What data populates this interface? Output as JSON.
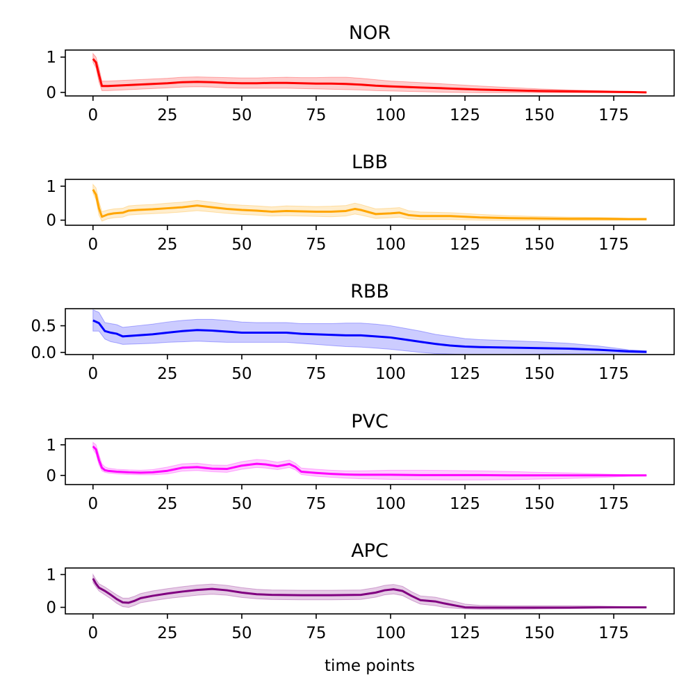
{
  "chart_data": [
    {
      "type": "line",
      "title": "NOR",
      "color": "#ff0000",
      "xlim": [
        -9.3,
        195.3
      ],
      "ylim": [
        -0.1,
        1.2
      ],
      "yticks": [
        0,
        1
      ],
      "ytick_labels": [
        "0",
        "1"
      ],
      "xticks": [
        0,
        25,
        50,
        75,
        100,
        125,
        150,
        175
      ],
      "xtick_labels": [
        "0",
        "25",
        "50",
        "75",
        "100",
        "125",
        "150",
        "175"
      ],
      "xlabel": "",
      "series": [
        {
          "x": [
            0,
            1,
            2,
            3,
            5,
            10,
            15,
            20,
            25,
            30,
            35,
            40,
            45,
            50,
            55,
            60,
            65,
            70,
            75,
            80,
            85,
            90,
            95,
            100,
            110,
            120,
            130,
            140,
            150,
            160,
            170,
            180,
            186
          ],
          "mean": [
            0.95,
            0.85,
            0.5,
            0.18,
            0.18,
            0.2,
            0.22,
            0.24,
            0.26,
            0.29,
            0.3,
            0.29,
            0.27,
            0.26,
            0.26,
            0.27,
            0.27,
            0.26,
            0.25,
            0.25,
            0.24,
            0.22,
            0.19,
            0.17,
            0.14,
            0.11,
            0.08,
            0.06,
            0.04,
            0.03,
            0.02,
            0.01,
            0.0
          ],
          "lower": [
            0.85,
            0.7,
            0.3,
            0.05,
            0.05,
            0.07,
            0.09,
            0.11,
            0.13,
            0.15,
            0.16,
            0.15,
            0.13,
            0.12,
            0.12,
            0.12,
            0.12,
            0.11,
            0.1,
            0.09,
            0.08,
            0.07,
            0.05,
            0.04,
            0.02,
            0.0,
            -0.01,
            -0.01,
            -0.01,
            -0.01,
            -0.01,
            -0.01,
            -0.01
          ],
          "upper": [
            1.1,
            1.0,
            0.7,
            0.32,
            0.32,
            0.34,
            0.36,
            0.38,
            0.4,
            0.43,
            0.44,
            0.43,
            0.42,
            0.41,
            0.41,
            0.42,
            0.43,
            0.42,
            0.42,
            0.43,
            0.43,
            0.4,
            0.36,
            0.32,
            0.28,
            0.23,
            0.18,
            0.14,
            0.1,
            0.07,
            0.05,
            0.02,
            0.01
          ]
        }
      ]
    },
    {
      "type": "line",
      "title": "LBB",
      "color": "#ffa500",
      "xlim": [
        -9.3,
        195.3
      ],
      "ylim": [
        -0.15,
        1.2
      ],
      "yticks": [
        0,
        1
      ],
      "ytick_labels": [
        "0",
        "1"
      ],
      "xticks": [
        0,
        25,
        50,
        75,
        100,
        125,
        150,
        175
      ],
      "xtick_labels": [
        "0",
        "25",
        "50",
        "75",
        "100",
        "125",
        "150",
        "175"
      ],
      "xlabel": "",
      "series": [
        {
          "x": [
            0,
            1,
            2,
            3,
            5,
            7,
            10,
            12,
            15,
            20,
            25,
            30,
            35,
            40,
            45,
            50,
            55,
            60,
            65,
            70,
            75,
            80,
            85,
            88,
            90,
            95,
            100,
            103,
            106,
            110,
            120,
            130,
            140,
            150,
            160,
            170,
            180,
            186
          ],
          "mean": [
            0.9,
            0.75,
            0.35,
            0.1,
            0.17,
            0.2,
            0.22,
            0.28,
            0.3,
            0.32,
            0.35,
            0.38,
            0.43,
            0.38,
            0.33,
            0.3,
            0.28,
            0.25,
            0.27,
            0.26,
            0.25,
            0.25,
            0.27,
            0.33,
            0.3,
            0.18,
            0.2,
            0.22,
            0.15,
            0.12,
            0.12,
            0.08,
            0.06,
            0.05,
            0.04,
            0.04,
            0.03,
            0.03
          ],
          "lower": [
            0.8,
            0.6,
            0.15,
            -0.03,
            0.04,
            0.07,
            0.09,
            0.15,
            0.17,
            0.19,
            0.21,
            0.24,
            0.28,
            0.24,
            0.2,
            0.17,
            0.15,
            0.12,
            0.13,
            0.12,
            0.11,
            0.1,
            0.12,
            0.18,
            0.15,
            0.05,
            0.07,
            0.09,
            0.04,
            0.02,
            0.02,
            0.0,
            -0.01,
            -0.01,
            -0.01,
            -0.01,
            0.0,
            0.0
          ],
          "upper": [
            1.05,
            0.95,
            0.55,
            0.25,
            0.3,
            0.33,
            0.35,
            0.42,
            0.44,
            0.46,
            0.5,
            0.53,
            0.58,
            0.53,
            0.47,
            0.44,
            0.42,
            0.39,
            0.42,
            0.41,
            0.4,
            0.41,
            0.43,
            0.5,
            0.46,
            0.33,
            0.35,
            0.37,
            0.28,
            0.24,
            0.22,
            0.17,
            0.13,
            0.11,
            0.09,
            0.08,
            0.06,
            0.06
          ]
        }
      ]
    },
    {
      "type": "line",
      "title": "RBB",
      "color": "#0000ff",
      "xlim": [
        -9.3,
        195.3
      ],
      "ylim": [
        -0.04,
        0.82
      ],
      "yticks": [
        0,
        0.5
      ],
      "ytick_labels": [
        "0.0",
        "0.5"
      ],
      "xticks": [
        0,
        25,
        50,
        75,
        100,
        125,
        150,
        175
      ],
      "xtick_labels": [
        "0",
        "25",
        "50",
        "75",
        "100",
        "125",
        "150",
        "175"
      ],
      "xlabel": "",
      "series": [
        {
          "x": [
            0,
            2,
            4,
            6,
            8,
            10,
            15,
            20,
            25,
            30,
            35,
            40,
            45,
            50,
            55,
            60,
            65,
            70,
            75,
            80,
            85,
            90,
            95,
            100,
            105,
            110,
            115,
            120,
            125,
            130,
            140,
            150,
            160,
            170,
            180,
            186
          ],
          "mean": [
            0.6,
            0.55,
            0.4,
            0.37,
            0.35,
            0.3,
            0.32,
            0.34,
            0.37,
            0.4,
            0.42,
            0.41,
            0.39,
            0.37,
            0.37,
            0.37,
            0.37,
            0.35,
            0.34,
            0.33,
            0.32,
            0.32,
            0.3,
            0.28,
            0.24,
            0.2,
            0.16,
            0.13,
            0.11,
            0.1,
            0.09,
            0.08,
            0.07,
            0.05,
            0.02,
            0.01
          ],
          "lower": [
            0.4,
            0.4,
            0.25,
            0.2,
            0.18,
            0.15,
            0.16,
            0.17,
            0.19,
            0.2,
            0.21,
            0.2,
            0.19,
            0.19,
            0.19,
            0.19,
            0.19,
            0.17,
            0.15,
            0.13,
            0.11,
            0.1,
            0.08,
            0.06,
            0.03,
            0.0,
            -0.02,
            -0.03,
            -0.04,
            -0.04,
            -0.04,
            -0.03,
            -0.02,
            -0.02,
            -0.01,
            -0.01
          ],
          "upper": [
            0.8,
            0.75,
            0.56,
            0.54,
            0.52,
            0.47,
            0.5,
            0.53,
            0.57,
            0.6,
            0.62,
            0.62,
            0.6,
            0.57,
            0.56,
            0.56,
            0.56,
            0.54,
            0.54,
            0.54,
            0.55,
            0.55,
            0.53,
            0.5,
            0.45,
            0.4,
            0.34,
            0.3,
            0.26,
            0.24,
            0.22,
            0.2,
            0.17,
            0.12,
            0.05,
            0.03
          ]
        }
      ]
    },
    {
      "type": "line",
      "title": "PVC",
      "color": "#ff00ff",
      "xlim": [
        -9.3,
        195.3
      ],
      "ylim": [
        -0.3,
        1.2
      ],
      "yticks": [
        0,
        1
      ],
      "ytick_labels": [
        "0",
        "1"
      ],
      "xticks": [
        0,
        25,
        50,
        75,
        100,
        125,
        150,
        175
      ],
      "xtick_labels": [
        "0",
        "25",
        "50",
        "75",
        "100",
        "125",
        "150",
        "175"
      ],
      "xlabel": "",
      "series": [
        {
          "x": [
            0,
            1,
            2,
            3,
            4,
            5,
            8,
            12,
            16,
            20,
            25,
            30,
            35,
            40,
            45,
            50,
            55,
            58,
            62,
            66,
            68,
            70,
            75,
            80,
            85,
            90,
            100,
            110,
            120,
            130,
            140,
            150,
            160,
            170,
            180,
            186
          ],
          "mean": [
            0.95,
            0.85,
            0.5,
            0.25,
            0.17,
            0.15,
            0.12,
            0.1,
            0.09,
            0.1,
            0.15,
            0.25,
            0.27,
            0.22,
            0.21,
            0.32,
            0.38,
            0.36,
            0.3,
            0.37,
            0.28,
            0.12,
            0.08,
            0.05,
            0.03,
            0.02,
            0.02,
            0.01,
            0.01,
            0.01,
            0.0,
            0.0,
            0.0,
            0.0,
            0.0,
            0.0
          ],
          "lower": [
            0.85,
            0.7,
            0.35,
            0.15,
            0.1,
            0.08,
            0.05,
            0.03,
            0.02,
            0.02,
            0.05,
            0.14,
            0.16,
            0.12,
            0.1,
            0.2,
            0.26,
            0.24,
            0.19,
            0.26,
            0.18,
            0.03,
            -0.03,
            -0.06,
            -0.09,
            -0.11,
            -0.13,
            -0.14,
            -0.15,
            -0.15,
            -0.14,
            -0.12,
            -0.1,
            -0.07,
            -0.03,
            -0.02
          ],
          "upper": [
            1.08,
            1.0,
            0.68,
            0.38,
            0.28,
            0.24,
            0.2,
            0.18,
            0.17,
            0.19,
            0.27,
            0.38,
            0.4,
            0.34,
            0.33,
            0.45,
            0.52,
            0.5,
            0.43,
            0.5,
            0.4,
            0.24,
            0.2,
            0.17,
            0.15,
            0.15,
            0.17,
            0.17,
            0.16,
            0.15,
            0.13,
            0.1,
            0.08,
            0.05,
            0.02,
            0.01
          ]
        }
      ]
    },
    {
      "type": "line",
      "title": "APC",
      "color": "#800080",
      "xlim": [
        -9.3,
        195.3
      ],
      "ylim": [
        -0.2,
        1.2
      ],
      "yticks": [
        0,
        1
      ],
      "ytick_labels": [
        "0",
        "1"
      ],
      "xticks": [
        0,
        25,
        50,
        75,
        100,
        125,
        150,
        175
      ],
      "xtick_labels": [
        "0",
        "25",
        "50",
        "75",
        "100",
        "125",
        "150",
        "175"
      ],
      "xlabel": "time points",
      "series": [
        {
          "x": [
            0,
            1,
            2,
            4,
            6,
            8,
            10,
            12,
            14,
            16,
            20,
            25,
            30,
            35,
            40,
            45,
            50,
            55,
            60,
            70,
            80,
            90,
            95,
            98,
            101,
            104,
            107,
            110,
            115,
            118,
            122,
            125,
            130,
            140,
            150,
            160,
            170,
            180,
            186
          ],
          "mean": [
            0.88,
            0.72,
            0.6,
            0.5,
            0.38,
            0.25,
            0.15,
            0.14,
            0.2,
            0.28,
            0.35,
            0.42,
            0.48,
            0.53,
            0.56,
            0.52,
            0.45,
            0.4,
            0.38,
            0.37,
            0.37,
            0.38,
            0.45,
            0.52,
            0.55,
            0.5,
            0.35,
            0.22,
            0.18,
            0.12,
            0.05,
            0.0,
            -0.01,
            -0.01,
            -0.01,
            -0.01,
            0.0,
            0.0,
            0.0
          ],
          "lower": [
            0.75,
            0.62,
            0.5,
            0.38,
            0.26,
            0.12,
            0.02,
            0.0,
            0.06,
            0.14,
            0.2,
            0.27,
            0.32,
            0.37,
            0.4,
            0.37,
            0.3,
            0.26,
            0.24,
            0.23,
            0.23,
            0.24,
            0.31,
            0.38,
            0.41,
            0.36,
            0.22,
            0.1,
            0.05,
            0.0,
            -0.03,
            -0.05,
            -0.06,
            -0.06,
            -0.05,
            -0.04,
            -0.03,
            -0.01,
            -0.01
          ],
          "upper": [
            1.0,
            0.85,
            0.72,
            0.62,
            0.5,
            0.38,
            0.28,
            0.28,
            0.34,
            0.42,
            0.5,
            0.57,
            0.63,
            0.68,
            0.71,
            0.67,
            0.6,
            0.55,
            0.53,
            0.52,
            0.52,
            0.53,
            0.6,
            0.67,
            0.7,
            0.64,
            0.48,
            0.35,
            0.31,
            0.25,
            0.17,
            0.1,
            0.06,
            0.05,
            0.05,
            0.05,
            0.04,
            0.02,
            0.01
          ]
        }
      ]
    }
  ]
}
